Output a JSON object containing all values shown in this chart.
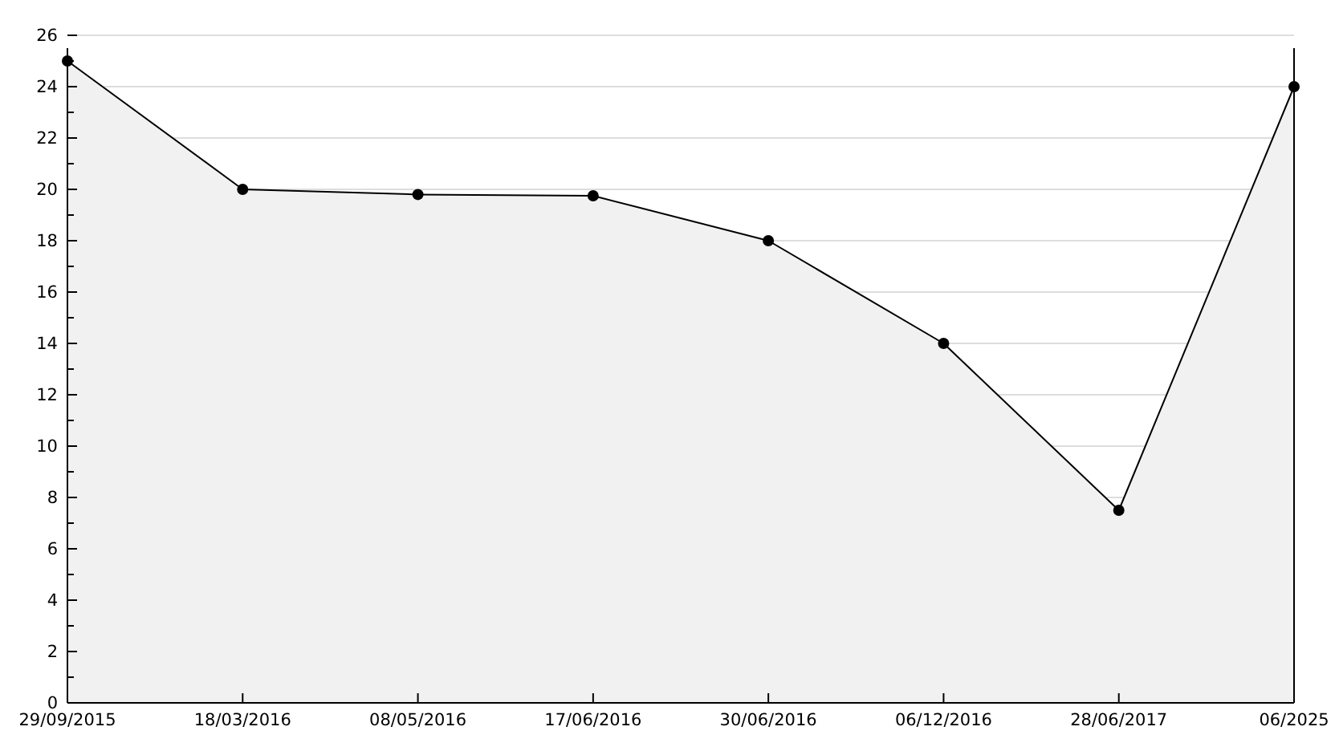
{
  "chart_data": {
    "type": "area",
    "categories": [
      "29/09/2015",
      "18/03/2016",
      "08/05/2016",
      "17/06/2016",
      "30/06/2016",
      "06/12/2016",
      "28/06/2017",
      "06/2025"
    ],
    "series": [
      {
        "color": "#000000",
        "values": [
          25,
          20,
          19.8,
          19.75,
          18,
          14,
          7.5,
          24
        ]
      }
    ],
    "ylim": [
      0,
      26
    ],
    "yticks": [
      0,
      {
        "value": 1,
        "label": null
      },
      2,
      {
        "value": 3,
        "label": null
      },
      4,
      {
        "value": 5,
        "label": null
      },
      6,
      {
        "value": 7,
        "label": null
      },
      8,
      {
        "value": 9,
        "label": null
      },
      10,
      {
        "value": 11,
        "label": null
      },
      12,
      {
        "value": 13,
        "label": null
      },
      14,
      {
        "value": 15,
        "label": null
      },
      16,
      {
        "value": 17,
        "label": null
      },
      18,
      {
        "value": 19,
        "label": null
      },
      20,
      {
        "value": 21,
        "label": null
      },
      22,
      {
        "value": 23,
        "label": null
      },
      24,
      {
        "value": 25,
        "label": null
      },
      26
    ],
    "grid": "y",
    "marker": "circle",
    "line_style": "solid"
  }
}
